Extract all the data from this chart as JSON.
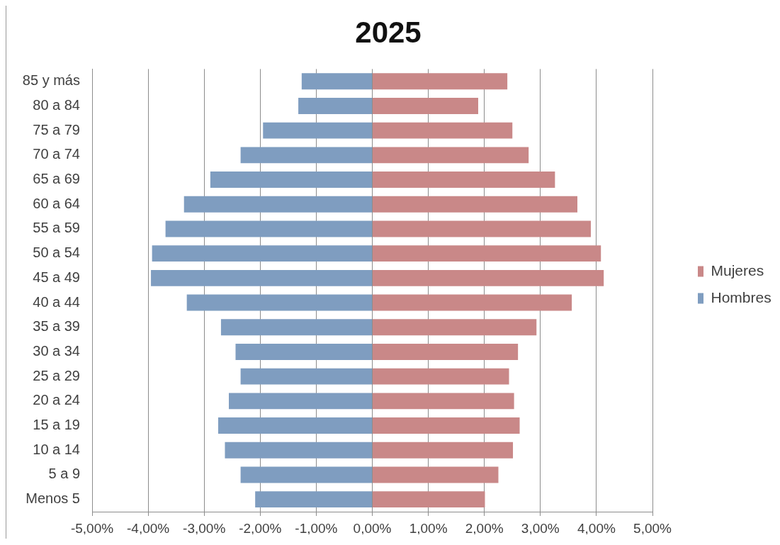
{
  "chart_data": {
    "type": "bar",
    "title": "2025",
    "orientation": "horizontal",
    "stacked": true,
    "categories": [
      "85 y más",
      "80 a 84",
      "75 a 79",
      "70 a 74",
      "65 a 69",
      "60 a 64",
      "55 a 59",
      "50 a 54",
      "45 a 49",
      "40 a 44",
      "35 a 39",
      "30 a 34",
      "25 a 29",
      "20 a 24",
      "15 a 19",
      "10 a 14",
      "5 a 9",
      "Menos 5"
    ],
    "series": [
      {
        "name": "Mujeres",
        "color": "#c98888",
        "values": [
          2.41,
          1.89,
          2.5,
          2.79,
          3.26,
          3.66,
          3.9,
          4.08,
          4.13,
          3.56,
          2.93,
          2.6,
          2.44,
          2.53,
          2.63,
          2.51,
          2.25,
          2.01
        ]
      },
      {
        "name": "Hombres",
        "color": "#7f9dc0",
        "values": [
          -1.26,
          -1.32,
          -1.95,
          -2.35,
          -2.89,
          -3.36,
          -3.69,
          -3.93,
          -3.95,
          -3.31,
          -2.7,
          -2.44,
          -2.35,
          -2.56,
          -2.75,
          -2.63,
          -2.35,
          -2.09
        ]
      }
    ],
    "xlim": [
      -5,
      5
    ],
    "xticks": [
      {
        "value": -5,
        "label": "-5,00%"
      },
      {
        "value": -4,
        "label": "-4,00%"
      },
      {
        "value": -3,
        "label": "-3,00%"
      },
      {
        "value": -2,
        "label": "-2,00%"
      },
      {
        "value": -1,
        "label": "-1,00%"
      },
      {
        "value": 0,
        "label": "0,00%"
      },
      {
        "value": 1,
        "label": "1,00%"
      },
      {
        "value": 2,
        "label": "2,00%"
      },
      {
        "value": 3,
        "label": "3,00%"
      },
      {
        "value": 4,
        "label": "4,00%"
      },
      {
        "value": 5,
        "label": "5,00%"
      }
    ],
    "grid": "x",
    "legend": "right"
  }
}
